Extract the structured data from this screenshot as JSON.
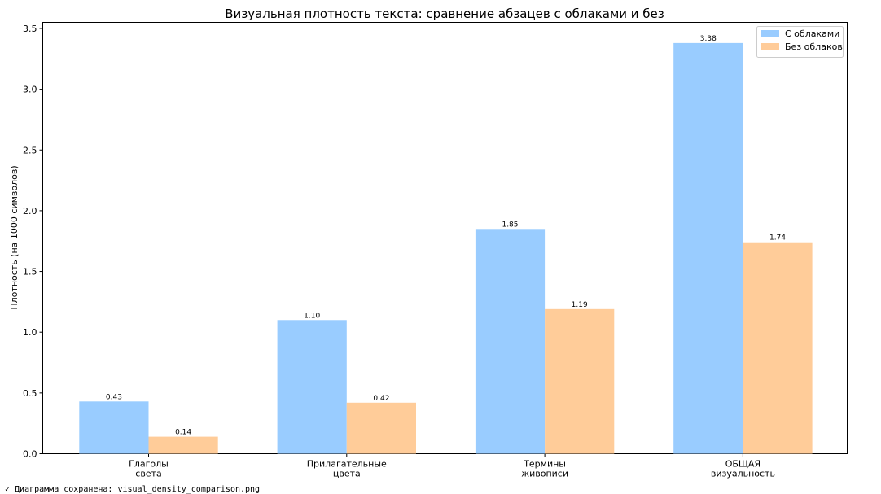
{
  "status_message": "✓ Диаграмма сохранена: visual_density_comparison.png",
  "chart_data": {
    "type": "bar",
    "title": "Визуальная плотность текста: сравнение абзацев с облаками и без",
    "xlabel": "",
    "ylabel": "Плотность (на 1000 символов)",
    "categories": [
      [
        "Глаголы",
        "света"
      ],
      [
        "Прилагательные",
        "цвета"
      ],
      [
        "Термины",
        "живописи"
      ],
      [
        "ОБЩАЯ",
        "визуальность"
      ]
    ],
    "series": [
      {
        "name": "С облаками",
        "values": [
          0.43,
          1.1,
          1.85,
          3.38
        ],
        "labels": [
          "0.43",
          "1.10",
          "1.85",
          "3.38"
        ],
        "color": "#99ccff"
      },
      {
        "name": "Без облаков",
        "values": [
          0.14,
          0.42,
          1.19,
          1.74
        ],
        "labels": [
          "0.14",
          "0.42",
          "1.19",
          "1.74"
        ],
        "color": "#ffcc99"
      }
    ],
    "ylim": [
      0,
      3.55
    ],
    "yticks": [
      "0.0",
      "0.5",
      "1.0",
      "1.5",
      "2.0",
      "2.5",
      "3.0",
      "3.5"
    ],
    "legend_position": "top-right",
    "grid": false
  }
}
